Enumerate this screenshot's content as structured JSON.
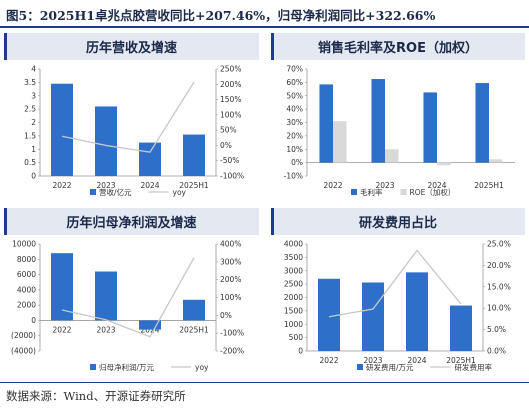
{
  "figure": {
    "title": "图5：2025H1卓兆点胶营收同比+207.46%，归母净利润同比+322.66%",
    "source": "数据来源：Wind、开源证券研究所"
  },
  "colors": {
    "bar_primary": "#2e6fc9",
    "bar_secondary": "#d9d9d9",
    "line": "#c8c8c8",
    "rule": "#1f3a93",
    "negative_tick": "#c00000"
  },
  "chart_data": [
    {
      "title": "历年营收及增速",
      "type": "bar",
      "categories": [
        "2022",
        "2023",
        "2024",
        "2025H1"
      ],
      "series": [
        {
          "name": "营收/亿元",
          "axis": "left",
          "kind": "bar",
          "values": [
            3.45,
            2.6,
            1.25,
            1.55
          ]
        },
        {
          "name": "yoy",
          "axis": "right",
          "kind": "line",
          "values": [
            0.3,
            0.0,
            -0.22,
            2.07
          ]
        }
      ],
      "left_axis": {
        "min": 0,
        "max": 4,
        "ticks": [
          "0",
          "0.5",
          "1",
          "1.5",
          "2",
          "2.5",
          "3",
          "3.5",
          "4"
        ]
      },
      "right_axis": {
        "min": -1,
        "max": 2.5,
        "ticks": [
          "-100%",
          "-50%",
          "0%",
          "50%",
          "100%",
          "150%",
          "200%",
          "250%"
        ]
      },
      "legend": "bottom"
    },
    {
      "title": "销售毛利率及ROE（加权）",
      "type": "bar",
      "categories": [
        "2022",
        "2023",
        "2024",
        "2025H1"
      ],
      "series": [
        {
          "name": "毛利率",
          "kind": "bar",
          "values": [
            0.585,
            0.625,
            0.525,
            0.595
          ]
        },
        {
          "name": "ROE（加权）",
          "kind": "bar",
          "values": [
            0.31,
            0.1,
            -0.02,
            0.025
          ]
        }
      ],
      "left_axis": {
        "min": -0.1,
        "max": 0.7,
        "ticks": [
          "-10%",
          "0%",
          "10%",
          "20%",
          "30%",
          "40%",
          "50%",
          "60%",
          "70%"
        ]
      },
      "legend": "bottom"
    },
    {
      "title": "历年归母净利润及增速",
      "type": "bar",
      "categories": [
        "2022",
        "2023",
        "2024",
        "2025H1"
      ],
      "series": [
        {
          "name": "归母净利润/万元",
          "axis": "left",
          "kind": "bar",
          "values": [
            8800,
            6400,
            -1200,
            2700
          ]
        },
        {
          "name": "yoy",
          "axis": "right",
          "kind": "line",
          "values": [
            0.3,
            -0.25,
            -1.2,
            3.23
          ]
        }
      ],
      "left_axis": {
        "min": -4000,
        "max": 10000,
        "ticks": [
          "(4000)",
          "(2000)",
          "0",
          "2000",
          "4000",
          "6000",
          "8000",
          "10000"
        ]
      },
      "right_axis": {
        "min": -2,
        "max": 4,
        "ticks": [
          "-200%",
          "-100%",
          "0%",
          "100%",
          "200%",
          "300%",
          "400%"
        ]
      },
      "legend": "bottom"
    },
    {
      "title": "研发费用占比",
      "type": "bar",
      "categories": [
        "2022",
        "2023",
        "2024",
        "2025H1"
      ],
      "series": [
        {
          "name": "研发费用/万元",
          "axis": "left",
          "kind": "bar",
          "values": [
            2700,
            2560,
            2940,
            1700
          ]
        },
        {
          "name": "研发费用率",
          "axis": "right",
          "kind": "line",
          "values": [
            0.08,
            0.098,
            0.235,
            0.11
          ]
        }
      ],
      "left_axis": {
        "min": 0,
        "max": 4000,
        "ticks": [
          "0",
          "500",
          "1000",
          "1500",
          "2000",
          "2500",
          "3000",
          "3500",
          "4000"
        ]
      },
      "right_axis": {
        "min": 0,
        "max": 0.25,
        "ticks": [
          "0.0%",
          "5.0%",
          "10.0%",
          "15.0%",
          "20.0%",
          "25.0%"
        ]
      },
      "legend": "bottom"
    }
  ]
}
